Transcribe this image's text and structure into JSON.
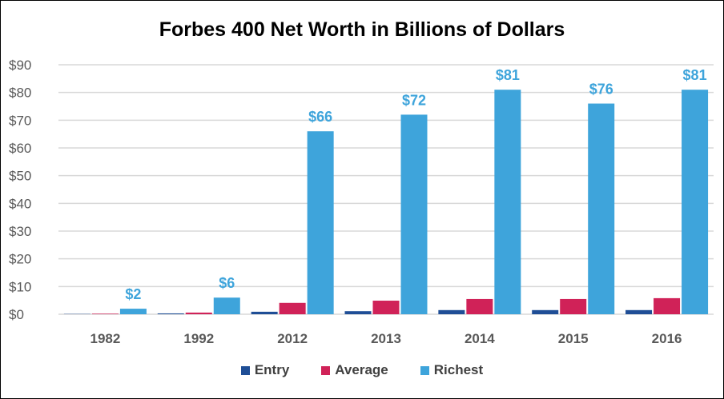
{
  "chart_data": {
    "type": "bar",
    "title": "Forbes 400 Net Worth in Billions of Dollars",
    "categories": [
      "1982",
      "1992",
      "2012",
      "2013",
      "2014",
      "2015",
      "2016"
    ],
    "series": [
      {
        "name": "Entry",
        "color": "#1f4e96",
        "values": [
          0.1,
          0.3,
          0.9,
          1.1,
          1.5,
          1.5,
          1.5
        ]
      },
      {
        "name": "Average",
        "color": "#d02258",
        "values": [
          0.2,
          0.6,
          4.1,
          4.9,
          5.5,
          5.5,
          5.8
        ]
      },
      {
        "name": "Richest",
        "color": "#3ea4db",
        "values": [
          2,
          6,
          66,
          72,
          81,
          76,
          81
        ],
        "labels": [
          "$2",
          "$6",
          "$66",
          "$72",
          "$81",
          "$76",
          "$81"
        ]
      }
    ],
    "yticks": [
      "$0",
      "$10",
      "$20",
      "$30",
      "$40",
      "$50",
      "$60",
      "$70",
      "$80",
      "$90"
    ],
    "ylim": [
      0,
      90
    ],
    "grid": true,
    "legend": "bottom"
  }
}
